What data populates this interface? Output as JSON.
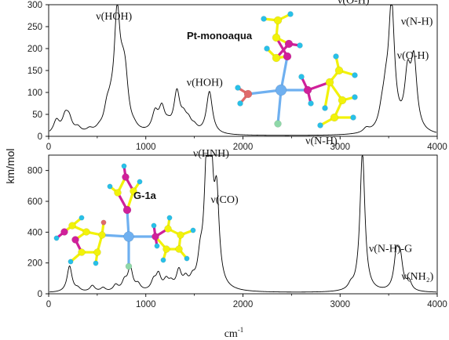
{
  "chart_data": [
    {
      "type": "line",
      "label": "Pt-monoaqua",
      "xlim": [
        0,
        4000
      ],
      "ylim": [
        0,
        300
      ],
      "xticks": [
        0,
        1000,
        2000,
        3000,
        4000
      ],
      "yticks": [
        0,
        50,
        100,
        150,
        200,
        250,
        300
      ],
      "peaks": [
        {
          "x": 80,
          "y": 30
        },
        {
          "x": 170,
          "y": 35
        },
        {
          "x": 210,
          "y": 30
        },
        {
          "x": 300,
          "y": 12
        },
        {
          "x": 420,
          "y": 8
        },
        {
          "x": 520,
          "y": 6
        },
        {
          "x": 600,
          "y": 40
        },
        {
          "x": 640,
          "y": 30
        },
        {
          "x": 705,
          "y": 255
        },
        {
          "x": 760,
          "y": 65
        },
        {
          "x": 790,
          "y": 88
        },
        {
          "x": 880,
          "y": 6
        },
        {
          "x": 1095,
          "y": 42
        },
        {
          "x": 1165,
          "y": 52
        },
        {
          "x": 1230,
          "y": 12
        },
        {
          "x": 1320,
          "y": 90
        },
        {
          "x": 1390,
          "y": 28
        },
        {
          "x": 1440,
          "y": 22
        },
        {
          "x": 1500,
          "y": 12
        },
        {
          "x": 1655,
          "y": 97
        },
        {
          "x": 3270,
          "y": 10
        },
        {
          "x": 3430,
          "y": 30
        },
        {
          "x": 3470,
          "y": 60
        },
        {
          "x": 3530,
          "y": 285
        },
        {
          "x": 3695,
          "y": 118
        },
        {
          "x": 3760,
          "y": 155
        }
      ],
      "annotations": [
        {
          "text": "ν(HOH)",
          "x": 705,
          "y": 255
        },
        {
          "text": "ν(HOH)",
          "x": 1655,
          "y": 97
        },
        {
          "text": "ν(O-H)",
          "x": 3380,
          "y": 285
        },
        {
          "text": "ν(N-H)",
          "x": 3710,
          "y": 240
        },
        {
          "text": "ν(O-H)",
          "x": 3790,
          "y": 155
        }
      ]
    },
    {
      "type": "line",
      "label": "G-1a",
      "xlim": [
        0,
        4000
      ],
      "ylim": [
        0,
        900
      ],
      "xticks": [
        0,
        1000,
        2000,
        3000,
        4000
      ],
      "yticks": [
        0,
        200,
        400,
        600,
        800
      ],
      "peaks": [
        {
          "x": 215,
          "y": 170
        },
        {
          "x": 300,
          "y": 20
        },
        {
          "x": 450,
          "y": 40
        },
        {
          "x": 560,
          "y": 25
        },
        {
          "x": 690,
          "y": 40
        },
        {
          "x": 780,
          "y": 60
        },
        {
          "x": 840,
          "y": 150
        },
        {
          "x": 920,
          "y": 40
        },
        {
          "x": 1080,
          "y": 60
        },
        {
          "x": 1130,
          "y": 100
        },
        {
          "x": 1210,
          "y": 60
        },
        {
          "x": 1260,
          "y": 40
        },
        {
          "x": 1340,
          "y": 120
        },
        {
          "x": 1410,
          "y": 60
        },
        {
          "x": 1480,
          "y": 50
        },
        {
          "x": 1560,
          "y": 150
        },
        {
          "x": 1625,
          "y": 600
        },
        {
          "x": 1665,
          "y": 850
        },
        {
          "x": 1730,
          "y": 540
        },
        {
          "x": 3110,
          "y": 30
        },
        {
          "x": 3230,
          "y": 910
        },
        {
          "x": 3580,
          "y": 220
        },
        {
          "x": 3620,
          "y": 190
        },
        {
          "x": 3710,
          "y": 60
        }
      ],
      "annotations": [
        {
          "text": "ν(HNH)",
          "x": 1640,
          "y": 850
        },
        {
          "text": "ν(CO)",
          "x": 1730,
          "y": 540
        },
        {
          "text": "ν(N-H)",
          "x": 3050,
          "y": 910
        },
        {
          "text": "ν(N-H)-G",
          "x": 3520,
          "y": 220
        },
        {
          "text": "ν(NH₂)",
          "x": 3700,
          "y": 60
        }
      ]
    }
  ],
  "axes": {
    "ylabel": "km/mol",
    "xlabel_base": "cm",
    "xlabel_sup": "-1"
  },
  "colors": {
    "carbon": "#f2f20a",
    "nitrogen": "#d0209a",
    "hydrogen": "#28c0e8",
    "platinum": "#6fb0f0",
    "oxygen": "#e06a6a",
    "chlorine": "#8fd8a8",
    "line": "#000000"
  }
}
